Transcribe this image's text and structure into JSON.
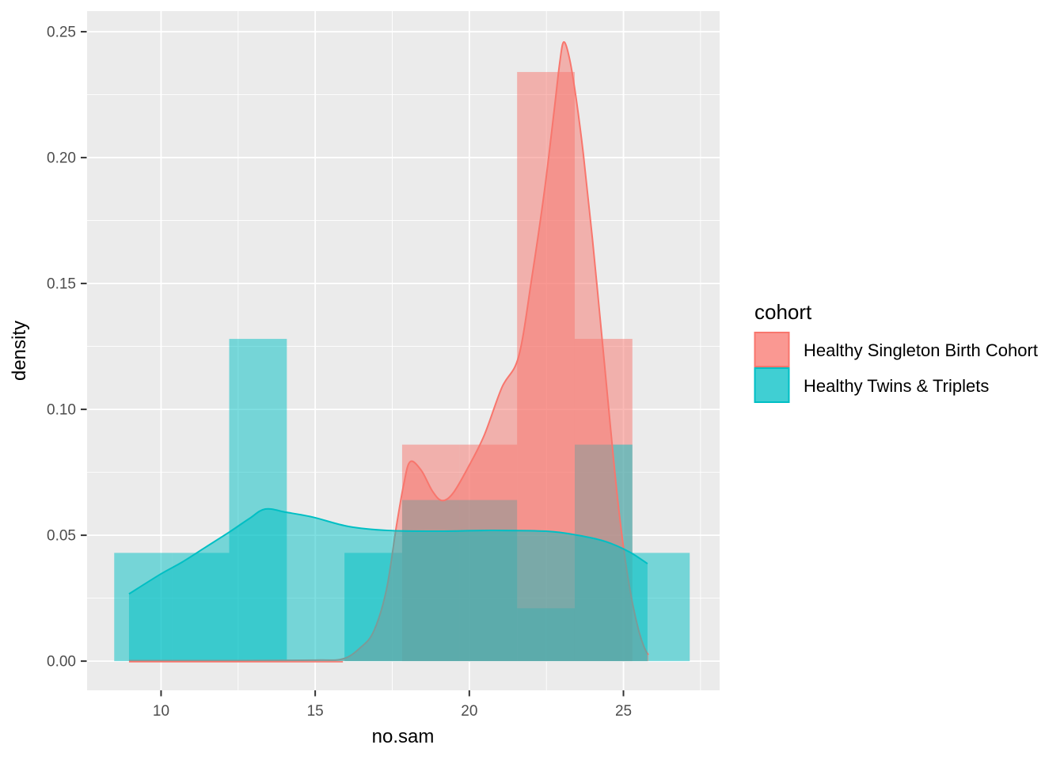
{
  "figure": {
    "kind": "overlaid histogram with kernel density curves (ggplot2 style)",
    "background": "#FFFFFF"
  },
  "axes": {
    "x": {
      "title": "no.sam",
      "lim": [
        7.6,
        28.12
      ],
      "major_ticks": [
        10,
        15,
        20,
        25
      ],
      "major_labels": [
        "10",
        "15",
        "20",
        "25"
      ],
      "minor_ticks": [
        12.5,
        17.5,
        22.5,
        27.5
      ]
    },
    "y": {
      "title": "density",
      "lim": [
        -0.0116,
        0.2582
      ],
      "major_ticks": [
        0,
        0.05,
        0.1,
        0.15,
        0.2,
        0.25
      ],
      "major_labels": [
        "0.00",
        "0.05",
        "0.10",
        "0.15",
        "0.20",
        "0.25"
      ],
      "minor_ticks": [
        0.025,
        0.075,
        0.125,
        0.175,
        0.225
      ]
    }
  },
  "legend": {
    "title": "cohort",
    "items": [
      {
        "label": "Healthy Singleton Birth Cohort",
        "color": "#F8766D"
      },
      {
        "label": "Healthy Twins & Triplets",
        "color": "#00BFC4"
      }
    ]
  },
  "style": {
    "panel_bg": "#EBEBEB",
    "grid_color": "#FFFFFF",
    "tick_color": "#333333",
    "axis_text_color": "#4D4D4D",
    "fill_alpha": 0.5,
    "grid_major_width": 1.8,
    "grid_minor_width": 0.9,
    "density_line_width": 2
  },
  "chart_data": {
    "type": "histogram+density",
    "x_variable": "no.sam",
    "y_variable": "density",
    "legend_variable": "cohort",
    "bin_edges": [
      8.48,
      10.35,
      12.21,
      14.08,
      15.95,
      17.82,
      19.68,
      21.55,
      23.42,
      25.29,
      27.15
    ],
    "series": [
      {
        "name": "Healthy Singleton Birth Cohort",
        "color": "#F8766D",
        "bar_densities": [
          0,
          0,
          0,
          0,
          0,
          0.086,
          0.086,
          0.234,
          0.128,
          0
        ],
        "density_curve": [
          [
            8.96,
            0.0002
          ],
          [
            12.5,
            0.0002
          ],
          [
            15.0,
            0.0004
          ],
          [
            15.9,
            0.0009
          ],
          [
            16.46,
            0.0053
          ],
          [
            16.9,
            0.0119
          ],
          [
            17.31,
            0.0283
          ],
          [
            17.62,
            0.0525
          ],
          [
            17.87,
            0.0701
          ],
          [
            18.08,
            0.0792
          ],
          [
            18.44,
            0.0758
          ],
          [
            18.8,
            0.0676
          ],
          [
            19.11,
            0.0638
          ],
          [
            19.47,
            0.0667
          ],
          [
            19.98,
            0.0774
          ],
          [
            20.49,
            0.0899
          ],
          [
            21.06,
            0.1088
          ],
          [
            21.6,
            0.121
          ],
          [
            22.03,
            0.1525
          ],
          [
            22.44,
            0.1871
          ],
          [
            22.75,
            0.2185
          ],
          [
            22.93,
            0.2374
          ],
          [
            23.06,
            0.2459
          ],
          [
            23.24,
            0.2399
          ],
          [
            23.45,
            0.2248
          ],
          [
            23.7,
            0.2013
          ],
          [
            23.99,
            0.1682
          ],
          [
            24.3,
            0.1289
          ],
          [
            24.58,
            0.0928
          ],
          [
            24.81,
            0.0645
          ],
          [
            25.04,
            0.0418
          ],
          [
            25.27,
            0.0245
          ],
          [
            25.5,
            0.0119
          ],
          [
            25.68,
            0.0053
          ],
          [
            25.81,
            0.0025
          ]
        ]
      },
      {
        "name": "Healthy Twins & Triplets",
        "color": "#00BFC4",
        "bar_densities": [
          0.043,
          0.043,
          0.128,
          0,
          0.043,
          0.064,
          0.064,
          0.021,
          0.086,
          0.043
        ],
        "density_curve": [
          [
            8.96,
            0.0267
          ],
          [
            9.99,
            0.0346
          ],
          [
            10.68,
            0.0393
          ],
          [
            11.45,
            0.0453
          ],
          [
            12.22,
            0.0513
          ],
          [
            12.86,
            0.0566
          ],
          [
            13.38,
            0.0604
          ],
          [
            14.07,
            0.0591
          ],
          [
            14.92,
            0.0572
          ],
          [
            16.08,
            0.0535
          ],
          [
            17.36,
            0.0519
          ],
          [
            19.03,
            0.0516
          ],
          [
            20.7,
            0.0519
          ],
          [
            22.5,
            0.0516
          ],
          [
            23.52,
            0.05
          ],
          [
            24.42,
            0.0475
          ],
          [
            25.19,
            0.0434
          ],
          [
            25.78,
            0.0387
          ]
        ]
      }
    ]
  }
}
